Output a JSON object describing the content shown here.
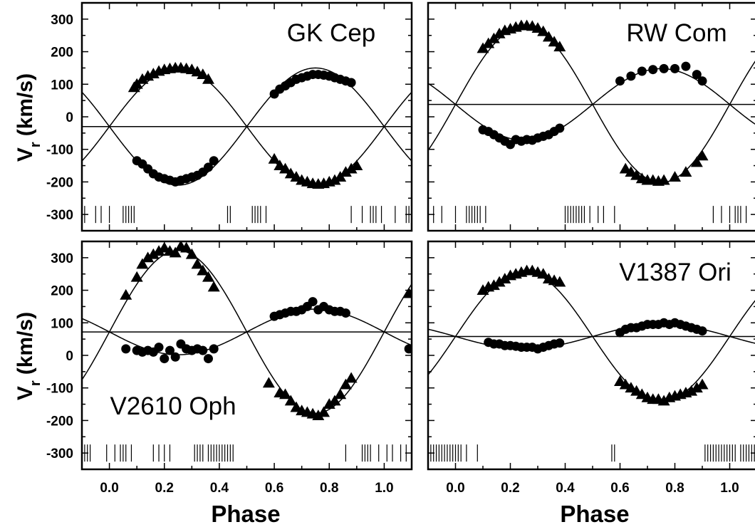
{
  "figure": {
    "xlabel": "Phase",
    "ylabel_main": "V",
    "ylabel_sub": "r",
    "ylabel_unit": "(km/s)"
  },
  "chart_data": [
    {
      "type": "scatter",
      "title": "GK Cep",
      "xlabel": "Phase",
      "ylabel": "Vr (km/s)",
      "xlim": [
        -0.1,
        1.1
      ],
      "ylim": [
        -350,
        350
      ],
      "xticks": [
        "0.0",
        "0.2",
        "0.4",
        "0.6",
        "0.8",
        "1.0"
      ],
      "yticks": [
        "300",
        "200",
        "100",
        "0",
        "-100",
        "-200",
        "-300"
      ],
      "gamma": -30,
      "K1": 180,
      "K2": 180,
      "phase_marks": [
        -0.09,
        -0.05,
        -0.03,
        0.0,
        0.05,
        0.06,
        0.07,
        0.08,
        0.09,
        0.43,
        0.44,
        0.52,
        0.53,
        0.54,
        0.55,
        0.57,
        0.88,
        0.92,
        0.95,
        0.96,
        0.97,
        0.99,
        1.04,
        1.08,
        1.09
      ],
      "series": [
        {
          "marker": "triangle",
          "x": [
            0.09,
            0.1,
            0.12,
            0.14,
            0.16,
            0.18,
            0.2,
            0.22,
            0.24,
            0.26,
            0.28,
            0.3,
            0.32,
            0.34,
            0.36,
            0.6,
            0.62,
            0.64,
            0.66,
            0.68,
            0.7,
            0.72,
            0.74,
            0.76,
            0.78,
            0.8,
            0.82,
            0.84,
            0.86,
            0.88,
            0.9
          ],
          "values": [
            90,
            100,
            115,
            125,
            132,
            140,
            145,
            148,
            150,
            150,
            148,
            145,
            138,
            130,
            115,
            -130,
            -150,
            -160,
            -175,
            -185,
            -195,
            -200,
            -205,
            -207,
            -205,
            -200,
            -195,
            -185,
            -170,
            -160,
            -150
          ]
        },
        {
          "marker": "circle",
          "x": [
            0.1,
            0.12,
            0.14,
            0.16,
            0.18,
            0.2,
            0.22,
            0.24,
            0.26,
            0.28,
            0.3,
            0.32,
            0.34,
            0.36,
            0.38,
            0.6,
            0.62,
            0.64,
            0.66,
            0.68,
            0.7,
            0.72,
            0.74,
            0.76,
            0.78,
            0.8,
            0.82,
            0.84,
            0.86,
            0.88
          ],
          "values": [
            -135,
            -145,
            -160,
            -175,
            -185,
            -190,
            -195,
            -200,
            -195,
            -190,
            -185,
            -180,
            -170,
            -155,
            -135,
            70,
            85,
            95,
            105,
            115,
            120,
            125,
            130,
            130,
            128,
            125,
            120,
            115,
            110,
            105
          ]
        }
      ]
    },
    {
      "type": "scatter",
      "title": "RW Com",
      "xlabel": "Phase",
      "ylabel": "Vr (km/s)",
      "xlim": [
        -0.1,
        1.1
      ],
      "ylim": [
        -350,
        350
      ],
      "xticks": [
        "0.0",
        "0.2",
        "0.4",
        "0.6",
        "0.8",
        "1.0"
      ],
      "yticks": [
        "300",
        "200",
        "100",
        "0",
        "-100",
        "-200",
        "-300"
      ],
      "gamma": 38,
      "K1": 240,
      "K2": 110,
      "phase_marks": [
        -0.08,
        -0.05,
        0.0,
        0.04,
        0.05,
        0.06,
        0.07,
        0.08,
        0.09,
        0.11,
        0.4,
        0.41,
        0.42,
        0.43,
        0.44,
        0.45,
        0.46,
        0.47,
        0.49,
        0.52,
        0.54,
        0.58,
        0.94,
        0.97,
        1.0,
        1.02,
        1.03,
        1.04,
        1.06
      ],
      "series": [
        {
          "marker": "triangle",
          "x": [
            0.1,
            0.12,
            0.14,
            0.16,
            0.18,
            0.2,
            0.22,
            0.24,
            0.26,
            0.28,
            0.3,
            0.32,
            0.34,
            0.36,
            0.38,
            0.62,
            0.64,
            0.66,
            0.68,
            0.7,
            0.72,
            0.74,
            0.76,
            0.8,
            0.84,
            0.88,
            0.9
          ],
          "values": [
            210,
            225,
            240,
            255,
            265,
            270,
            275,
            280,
            280,
            278,
            272,
            262,
            245,
            230,
            215,
            -160,
            -170,
            -180,
            -190,
            -195,
            -195,
            -198,
            -195,
            -185,
            -170,
            -140,
            -120
          ]
        },
        {
          "marker": "circle",
          "x": [
            0.1,
            0.12,
            0.14,
            0.16,
            0.18,
            0.2,
            0.22,
            0.24,
            0.26,
            0.28,
            0.3,
            0.32,
            0.34,
            0.36,
            0.38,
            0.6,
            0.64,
            0.68,
            0.72,
            0.76,
            0.8,
            0.84,
            0.88,
            0.9
          ],
          "values": [
            -40,
            -45,
            -55,
            -65,
            -75,
            -85,
            -70,
            -75,
            -70,
            -72,
            -65,
            -60,
            -55,
            -45,
            -35,
            110,
            125,
            140,
            145,
            148,
            148,
            155,
            130,
            110
          ]
        }
      ]
    },
    {
      "type": "scatter",
      "title": "V2610 Oph",
      "xlabel": "Phase",
      "ylabel": "Vr (km/s)",
      "xlim": [
        -0.1,
        1.1
      ],
      "ylim": [
        -350,
        350
      ],
      "xticks": [
        "0.0",
        "0.2",
        "0.4",
        "0.6",
        "0.8",
        "1.0"
      ],
      "yticks": [
        "300",
        "200",
        "100",
        "0",
        "-100",
        "-200",
        "-300"
      ],
      "gamma": 72,
      "K1": 250,
      "K2": 70,
      "phase_marks": [
        -0.09,
        -0.08,
        -0.07,
        -0.01,
        0.02,
        0.04,
        0.05,
        0.06,
        0.08,
        0.16,
        0.18,
        0.2,
        0.22,
        0.31,
        0.32,
        0.33,
        0.34,
        0.36,
        0.37,
        0.38,
        0.39,
        0.4,
        0.41,
        0.42,
        0.43,
        0.44,
        0.45,
        0.86,
        0.92,
        0.93,
        0.94,
        0.95,
        0.98,
        1.01,
        1.03,
        1.06,
        1.08
      ],
      "series": [
        {
          "marker": "triangle",
          "x": [
            0.06,
            0.1,
            0.12,
            0.14,
            0.16,
            0.18,
            0.2,
            0.22,
            0.24,
            0.26,
            0.28,
            0.3,
            0.32,
            0.34,
            0.36,
            0.38,
            0.58,
            0.62,
            0.64,
            0.66,
            0.68,
            0.7,
            0.72,
            0.74,
            0.76,
            0.78,
            0.8,
            0.82,
            0.84,
            0.86,
            0.88,
            1.09
          ],
          "values": [
            185,
            240,
            280,
            300,
            310,
            320,
            330,
            320,
            315,
            335,
            330,
            310,
            280,
            260,
            240,
            210,
            -85,
            -115,
            -120,
            -140,
            -160,
            -170,
            -175,
            -180,
            -185,
            -175,
            -150,
            -140,
            -120,
            -90,
            -70,
            190
          ]
        },
        {
          "marker": "circle",
          "x": [
            0.06,
            0.1,
            0.12,
            0.14,
            0.16,
            0.18,
            0.2,
            0.22,
            0.24,
            0.26,
            0.28,
            0.3,
            0.32,
            0.34,
            0.36,
            0.38,
            0.6,
            0.62,
            0.64,
            0.66,
            0.68,
            0.7,
            0.72,
            0.74,
            0.76,
            0.78,
            0.8,
            0.82,
            0.84,
            0.86,
            1.09
          ],
          "values": [
            20,
            15,
            10,
            15,
            10,
            25,
            -10,
            15,
            -5,
            35,
            20,
            15,
            20,
            15,
            -10,
            20,
            120,
            125,
            130,
            135,
            135,
            140,
            150,
            165,
            140,
            150,
            140,
            135,
            135,
            130,
            20
          ]
        }
      ]
    },
    {
      "type": "scatter",
      "title": "V1387 Ori",
      "xlabel": "Phase",
      "ylabel": "Vr (km/s)",
      "xlim": [
        -0.1,
        1.1
      ],
      "ylim": [
        -350,
        350
      ],
      "xticks": [
        "0.0",
        "0.2",
        "0.4",
        "0.6",
        "0.8",
        "1.0"
      ],
      "yticks": [
        "300",
        "200",
        "100",
        "0",
        "-100",
        "-200",
        "-300"
      ],
      "gamma": 58,
      "K1": 200,
      "K2": 38,
      "phase_marks": [
        -0.09,
        -0.08,
        -0.07,
        -0.06,
        -0.05,
        -0.04,
        -0.03,
        -0.02,
        -0.01,
        0.0,
        0.01,
        0.02,
        0.04,
        0.08,
        0.57,
        0.58,
        0.91,
        0.92,
        0.93,
        0.94,
        0.95,
        0.96,
        0.97,
        0.98,
        0.99,
        1.0,
        1.01,
        1.02,
        1.04,
        1.05,
        1.06,
        1.07,
        1.08,
        1.09
      ],
      "series": [
        {
          "marker": "triangle",
          "x": [
            0.1,
            0.12,
            0.14,
            0.16,
            0.18,
            0.2,
            0.22,
            0.24,
            0.26,
            0.28,
            0.3,
            0.32,
            0.34,
            0.36,
            0.38,
            0.6,
            0.62,
            0.64,
            0.66,
            0.68,
            0.7,
            0.72,
            0.74,
            0.76,
            0.78,
            0.8,
            0.82,
            0.84,
            0.86,
            0.88,
            0.9
          ],
          "values": [
            200,
            210,
            215,
            225,
            235,
            245,
            250,
            255,
            260,
            260,
            255,
            250,
            235,
            230,
            225,
            -80,
            -90,
            -100,
            -110,
            -120,
            -130,
            -135,
            -135,
            -140,
            -130,
            -125,
            -120,
            -115,
            -110,
            -100,
            -90
          ]
        },
        {
          "marker": "circle",
          "x": [
            0.12,
            0.14,
            0.16,
            0.18,
            0.2,
            0.22,
            0.24,
            0.26,
            0.28,
            0.3,
            0.32,
            0.34,
            0.36,
            0.38,
            0.6,
            0.62,
            0.64,
            0.66,
            0.68,
            0.7,
            0.72,
            0.74,
            0.76,
            0.78,
            0.8,
            0.82,
            0.84,
            0.86,
            0.88,
            0.9
          ],
          "values": [
            40,
            35,
            35,
            30,
            30,
            28,
            25,
            25,
            25,
            20,
            25,
            30,
            35,
            38,
            70,
            80,
            85,
            85,
            90,
            95,
            95,
            95,
            100,
            95,
            100,
            95,
            90,
            85,
            80,
            75
          ]
        }
      ]
    }
  ]
}
